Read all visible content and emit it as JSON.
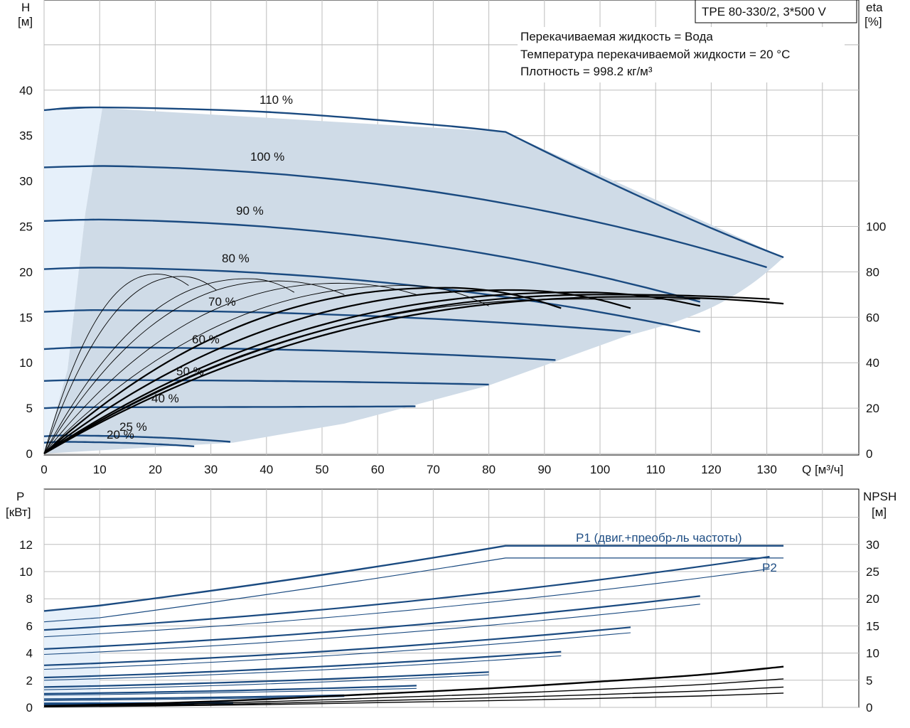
{
  "colors": {
    "curve": "#1a4a80",
    "area": "#cfdbe7",
    "area_light": "#e6f0fa",
    "grid": "#bdbdbd",
    "eff": "#000000"
  },
  "model_label": "TPE 80-330/2, 3*500 V",
  "info_lines": [
    "Перекачиваемая жидкость = Вода",
    "Температура перекачиваемой жидкости = 20 °C",
    "Плотность = 998.2 кг/м³"
  ],
  "chart_data": [
    {
      "type": "line",
      "x_axis": {
        "label": "Q [м³/ч]",
        "range": [
          0,
          135
        ],
        "ticks": [
          0,
          10,
          20,
          30,
          40,
          50,
          60,
          70,
          80,
          90,
          100,
          110,
          120,
          130
        ]
      },
      "y_axis_left": {
        "label_line1": "H",
        "label_line2": "[м]",
        "range": [
          0,
          40
        ],
        "ticks": [
          0,
          5,
          10,
          15,
          20,
          25,
          30,
          35,
          40
        ]
      },
      "y_axis_right": {
        "label_line1": "eta",
        "label_line2": "[%]",
        "range": [
          0,
          160
        ],
        "ticks": [
          0,
          20,
          40,
          60,
          80,
          100
        ]
      },
      "grid": true,
      "speed_curves": [
        {
          "name": "110 %",
          "x": [
            0,
            10,
            40,
            70,
            83,
            100,
            133
          ],
          "y": [
            37.8,
            38.1,
            37.6,
            36.2,
            35.4,
            29.5,
            21.6
          ]
        },
        {
          "name": "100 %",
          "x": [
            0,
            10,
            40,
            70,
            100,
            130
          ],
          "y": [
            31.5,
            31.7,
            31.2,
            29.8,
            26.5,
            20.5
          ]
        },
        {
          "name": "90 %",
          "x": [
            0,
            9,
            40,
            70,
            100,
            118
          ],
          "y": [
            25.6,
            25.8,
            25.3,
            23.8,
            20.0,
            16.7
          ]
        },
        {
          "name": "80 %",
          "x": [
            0,
            8,
            40,
            70,
            100,
            118
          ],
          "y": [
            20.3,
            20.5,
            20.0,
            18.8,
            16.3,
            13.4
          ]
        },
        {
          "name": "70 %",
          "x": [
            0,
            7,
            40,
            70,
            92,
            105.5
          ],
          "y": [
            15.6,
            15.8,
            15.3,
            13.5,
            11.5,
            13.4
          ]
        },
        {
          "name": "60 %",
          "x": [
            0,
            6,
            40,
            70,
            92
          ],
          "y": [
            11.5,
            11.7,
            11.1,
            8.8,
            10.3
          ]
        },
        {
          "name": "50 %",
          "x": [
            0,
            5,
            40,
            70,
            80
          ],
          "y": [
            8.0,
            8.1,
            7.6,
            6.5,
            7.6
          ]
        },
        {
          "name": "40 %",
          "x": [
            0,
            4,
            40,
            66.8
          ],
          "y": [
            5.0,
            5.1,
            4.8,
            5.2
          ]
        },
        {
          "name": "25 %",
          "x": [
            0,
            3,
            33.5
          ],
          "y": [
            1.9,
            2.0,
            1.3
          ]
        },
        {
          "name": "20 %",
          "x": [
            0,
            2.5,
            27
          ],
          "y": [
            1.2,
            1.3,
            0.8
          ]
        }
      ],
      "efficiency_peak_values": [
        79,
        78,
        77,
        76,
        75,
        74,
        73,
        72,
        71,
        70,
        69,
        68
      ]
    },
    {
      "type": "line",
      "x_axis": {
        "range": [
          0,
          135
        ]
      },
      "y_axis_left": {
        "label_line1": "P",
        "label_line2": "[кВт]",
        "range": [
          0,
          14
        ],
        "ticks": [
          0,
          2,
          4,
          6,
          8,
          10,
          12
        ]
      },
      "y_axis_right": {
        "label_line1": "NPSH",
        "label_line2": "[м]",
        "range": [
          0,
          35
        ],
        "ticks": [
          0,
          5,
          10,
          15,
          20,
          25,
          30
        ]
      },
      "grid": true,
      "series": [
        {
          "name": "P1 (двиг.+преобр-ль частоты)",
          "x": [
            0,
            10,
            83,
            133
          ],
          "y": [
            7.1,
            7.5,
            11.9,
            11.9
          ]
        },
        {
          "name": "P2",
          "x": [
            0,
            10,
            83,
            133
          ],
          "y": [
            6.3,
            6.6,
            11.0,
            11.0
          ]
        },
        {
          "name": "NPSH",
          "x": [
            0,
            20,
            40,
            60,
            80,
            100,
            118,
            133
          ],
          "y": [
            0.1,
            0.3,
            0.6,
            1.0,
            1.4,
            1.9,
            2.4,
            3.0
          ]
        }
      ]
    }
  ]
}
